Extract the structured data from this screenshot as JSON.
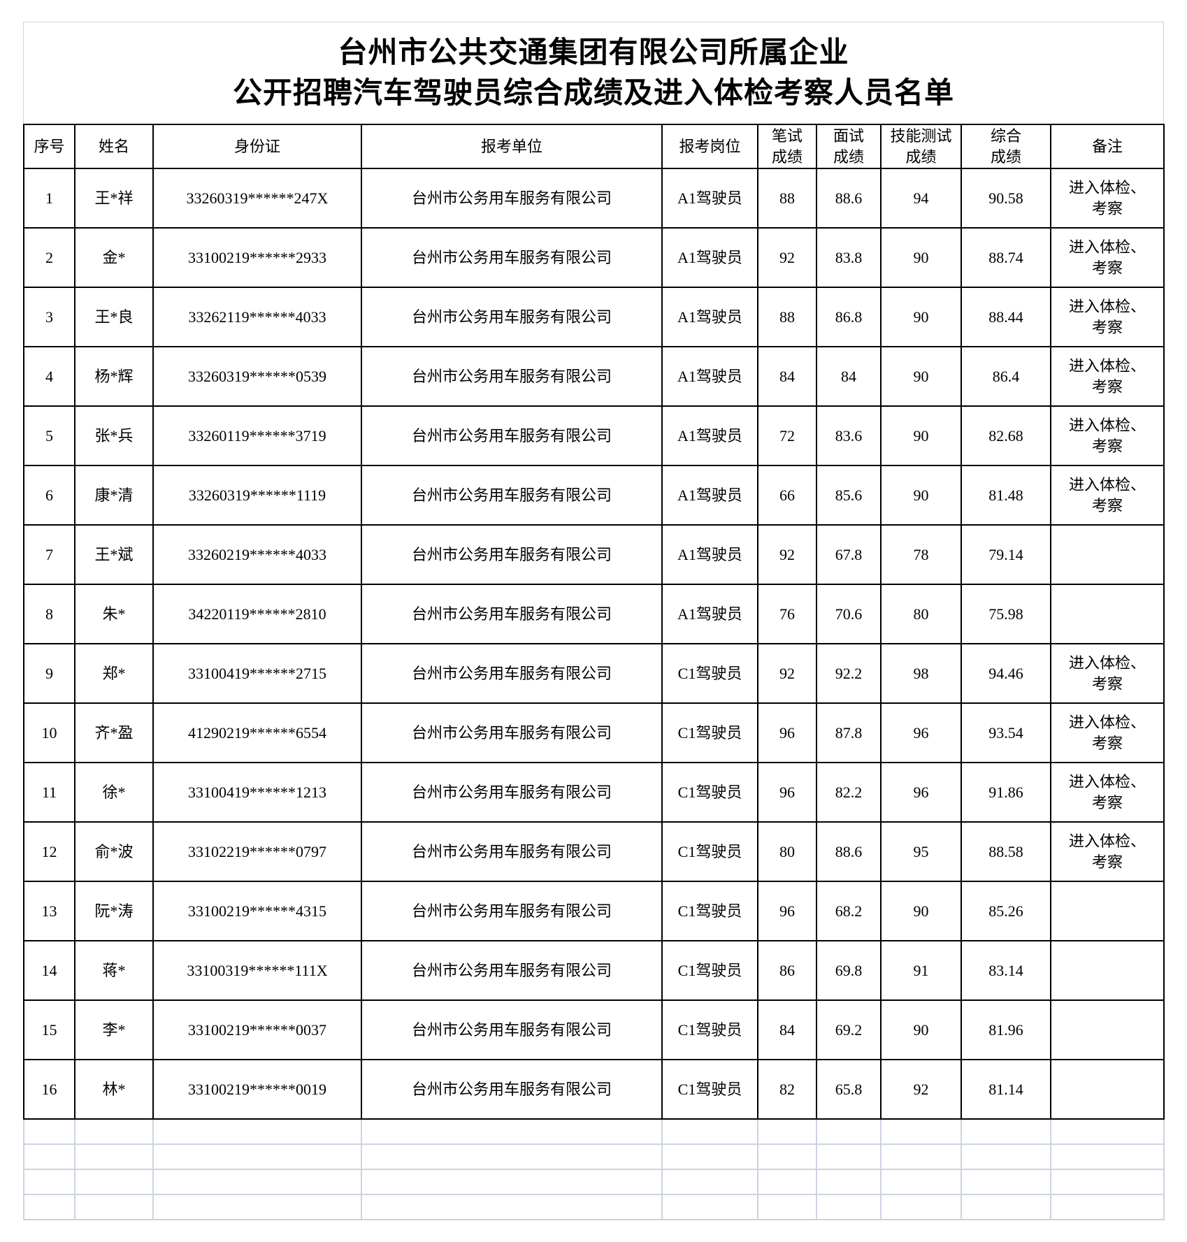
{
  "title": {
    "line1": "台州市公共交通集团有限公司所属企业",
    "line2": "公开招聘汽车驾驶员综合成绩及进入体检考察人员名单"
  },
  "table": {
    "headers": [
      "序号",
      "姓名",
      "身份证",
      "报考单位",
      "报考岗位",
      "笔试\n成绩",
      "面试\n成绩",
      "技能测试\n成绩",
      "综合\n成绩",
      "备注"
    ],
    "rows": [
      [
        "1",
        "王*祥",
        "33260319******247X",
        "台州市公务用车服务有限公司",
        "A1驾驶员",
        "88",
        "88.6",
        "94",
        "90.58",
        "进入体检、\n考察"
      ],
      [
        "2",
        "金*",
        "33100219******2933",
        "台州市公务用车服务有限公司",
        "A1驾驶员",
        "92",
        "83.8",
        "90",
        "88.74",
        "进入体检、\n考察"
      ],
      [
        "3",
        "王*良",
        "33262119******4033",
        "台州市公务用车服务有限公司",
        "A1驾驶员",
        "88",
        "86.8",
        "90",
        "88.44",
        "进入体检、\n考察"
      ],
      [
        "4",
        "杨*辉",
        "33260319******0539",
        "台州市公务用车服务有限公司",
        "A1驾驶员",
        "84",
        "84",
        "90",
        "86.4",
        "进入体检、\n考察"
      ],
      [
        "5",
        "张*兵",
        "33260119******3719",
        "台州市公务用车服务有限公司",
        "A1驾驶员",
        "72",
        "83.6",
        "90",
        "82.68",
        "进入体检、\n考察"
      ],
      [
        "6",
        "康*清",
        "33260319******1119",
        "台州市公务用车服务有限公司",
        "A1驾驶员",
        "66",
        "85.6",
        "90",
        "81.48",
        "进入体检、\n考察"
      ],
      [
        "7",
        "王*斌",
        "33260219******4033",
        "台州市公务用车服务有限公司",
        "A1驾驶员",
        "92",
        "67.8",
        "78",
        "79.14",
        ""
      ],
      [
        "8",
        "朱*",
        "34220119******2810",
        "台州市公务用车服务有限公司",
        "A1驾驶员",
        "76",
        "70.6",
        "80",
        "75.98",
        ""
      ],
      [
        "9",
        "郑*",
        "33100419******2715",
        "台州市公务用车服务有限公司",
        "C1驾驶员",
        "92",
        "92.2",
        "98",
        "94.46",
        "进入体检、\n考察"
      ],
      [
        "10",
        "齐*盈",
        "41290219******6554",
        "台州市公务用车服务有限公司",
        "C1驾驶员",
        "96",
        "87.8",
        "96",
        "93.54",
        "进入体检、\n考察"
      ],
      [
        "11",
        "徐*",
        "33100419******1213",
        "台州市公务用车服务有限公司",
        "C1驾驶员",
        "96",
        "82.2",
        "96",
        "91.86",
        "进入体检、\n考察"
      ],
      [
        "12",
        "俞*波",
        "33102219******0797",
        "台州市公务用车服务有限公司",
        "C1驾驶员",
        "80",
        "88.6",
        "95",
        "88.58",
        "进入体检、\n考察"
      ],
      [
        "13",
        "阮*涛",
        "33100219******4315",
        "台州市公务用车服务有限公司",
        "C1驾驶员",
        "96",
        "68.2",
        "90",
        "85.26",
        ""
      ],
      [
        "14",
        "蒋*",
        "33100319******111X",
        "台州市公务用车服务有限公司",
        "C1驾驶员",
        "86",
        "69.8",
        "91",
        "83.14",
        ""
      ],
      [
        "15",
        "李*",
        "33100219******0037",
        "台州市公务用车服务有限公司",
        "C1驾驶员",
        "84",
        "69.2",
        "90",
        "81.96",
        ""
      ],
      [
        "16",
        "林*",
        "33100219******0019",
        "台州市公务用车服务有限公司",
        "C1驾驶员",
        "82",
        "65.8",
        "92",
        "81.14",
        ""
      ]
    ],
    "empty_row_count": 4,
    "column_count": 10
  },
  "colors": {
    "border_dark": "#000000",
    "grid_light": "#ccd3e2",
    "text": "#000000",
    "background": "#ffffff"
  }
}
